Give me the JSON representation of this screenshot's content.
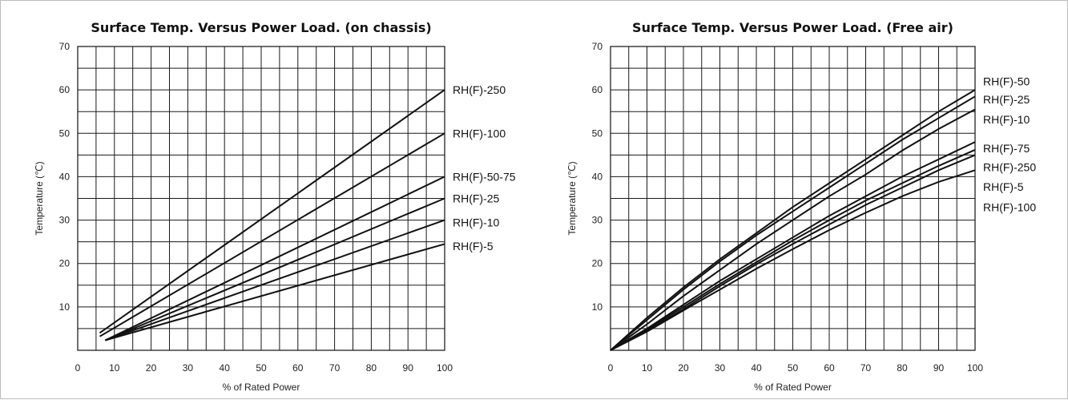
{
  "chart_data": [
    {
      "type": "line",
      "title": "Surface Temp. Versus Power Load. (on chassis)",
      "xlabel": "% of Rated Power",
      "ylabel": "Temperature (℃)",
      "xlim": [
        0,
        100
      ],
      "ylim": [
        0,
        70
      ],
      "x_ticks": [
        0,
        10,
        20,
        30,
        40,
        50,
        60,
        70,
        80,
        90,
        100
      ],
      "y_ticks": [
        10,
        20,
        30,
        40,
        50,
        60,
        70
      ],
      "grid": true,
      "series": [
        {
          "name": "RH(F)-250",
          "points": [
            [
              6,
              4
            ],
            [
              100,
              60
            ]
          ]
        },
        {
          "name": "RH(F)-100",
          "points": [
            [
              6,
              3.2
            ],
            [
              100,
              50
            ]
          ]
        },
        {
          "name": "RH(F)-50-75",
          "points": [
            [
              7.5,
              2.3
            ],
            [
              100,
              40
            ]
          ]
        },
        {
          "name": "RH(F)-25",
          "points": [
            [
              7.5,
              2.3
            ],
            [
              100,
              35
            ]
          ]
        },
        {
          "name": "RH(F)-10",
          "points": [
            [
              7.5,
              2.3
            ],
            [
              100,
              30
            ]
          ]
        },
        {
          "name": "RH(F)-5",
          "points": [
            [
              7.5,
              2.3
            ],
            [
              100,
              24.5
            ]
          ]
        }
      ],
      "series_label_y": [
        60,
        50,
        40,
        35,
        29.5,
        24
      ]
    },
    {
      "type": "line",
      "title": "Surface Temp. Versus Power Load. (Free air)",
      "xlabel": "% of Rated Power",
      "ylabel": "Temperature (℃)",
      "xlim": [
        0,
        100
      ],
      "ylim": [
        0,
        70
      ],
      "x_ticks": [
        0,
        10,
        20,
        30,
        40,
        50,
        60,
        70,
        80,
        90,
        100
      ],
      "y_ticks": [
        10,
        20,
        30,
        40,
        50,
        60,
        70
      ],
      "grid": true,
      "series": [
        {
          "name": "RH(F)-50",
          "points": [
            [
              0,
              0
            ],
            [
              10,
              7.5
            ],
            [
              20,
              14.5
            ],
            [
              30,
              21
            ],
            [
              40,
              27
            ],
            [
              50,
              33
            ],
            [
              60,
              38.5
            ],
            [
              70,
              44
            ],
            [
              80,
              49.5
            ],
            [
              90,
              55
            ],
            [
              100,
              60
            ]
          ]
        },
        {
          "name": "RH(F)-25",
          "points": [
            [
              0,
              0
            ],
            [
              10,
              7
            ],
            [
              20,
              14
            ],
            [
              30,
              20.5
            ],
            [
              40,
              26.5
            ],
            [
              50,
              32
            ],
            [
              60,
              37.5
            ],
            [
              70,
              43
            ],
            [
              80,
              48.5
            ],
            [
              90,
              53.5
            ],
            [
              100,
              58.5
            ]
          ]
        },
        {
          "name": "RH(F)-10",
          "points": [
            [
              0,
              0
            ],
            [
              10,
              6
            ],
            [
              20,
              12.5
            ],
            [
              30,
              18.5
            ],
            [
              40,
              24.5
            ],
            [
              50,
              30
            ],
            [
              60,
              35.5
            ],
            [
              70,
              40.5
            ],
            [
              80,
              46
            ],
            [
              90,
              51
            ],
            [
              100,
              55.5
            ]
          ]
        },
        {
          "name": "RH(F)-75",
          "points": [
            [
              0,
              0
            ],
            [
              10,
              5
            ],
            [
              20,
              10.5
            ],
            [
              30,
              16
            ],
            [
              40,
              21
            ],
            [
              50,
              26
            ],
            [
              60,
              31
            ],
            [
              70,
              35.5
            ],
            [
              80,
              40
            ],
            [
              90,
              44
            ],
            [
              100,
              48
            ]
          ]
        },
        {
          "name": "RH(F)-250",
          "points": [
            [
              0,
              0
            ],
            [
              10,
              4.8
            ],
            [
              20,
              10
            ],
            [
              30,
              15.3
            ],
            [
              40,
              20.3
            ],
            [
              50,
              25.3
            ],
            [
              60,
              30
            ],
            [
              70,
              34.5
            ],
            [
              80,
              38.5
            ],
            [
              90,
              42.5
            ],
            [
              100,
              46.2
            ]
          ]
        },
        {
          "name": "RH(F)-5",
          "points": [
            [
              0,
              0
            ],
            [
              10,
              4.5
            ],
            [
              20,
              9.5
            ],
            [
              30,
              14.8
            ],
            [
              40,
              19.8
            ],
            [
              50,
              24.5
            ],
            [
              60,
              29
            ],
            [
              70,
              33.5
            ],
            [
              80,
              37.5
            ],
            [
              90,
              41.5
            ],
            [
              100,
              45
            ]
          ]
        },
        {
          "name": "RH(F)-100",
          "points": [
            [
              0,
              0
            ],
            [
              10,
              4.3
            ],
            [
              20,
              9.2
            ],
            [
              30,
              14
            ],
            [
              40,
              18.8
            ],
            [
              50,
              23.3
            ],
            [
              60,
              27.7
            ],
            [
              70,
              31.7
            ],
            [
              80,
              35.5
            ],
            [
              90,
              38.8
            ],
            [
              100,
              41.5
            ]
          ]
        }
      ],
      "series_label_y": [
        62,
        57.8,
        53.2,
        46.5,
        42.2,
        37.7,
        33
      ]
    }
  ]
}
